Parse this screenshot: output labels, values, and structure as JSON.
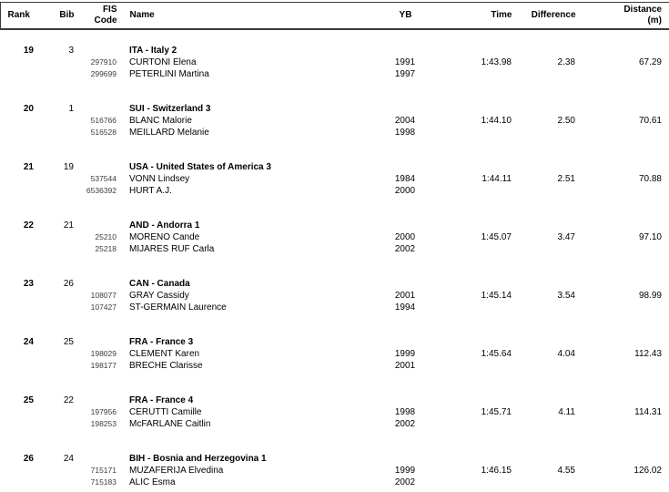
{
  "colors": {
    "border": "#3a3a3a",
    "text": "#000000",
    "fis_code_text": "#3c3c3c",
    "background": "#ffffff"
  },
  "header": {
    "rank": "Rank",
    "bib": "Bib",
    "fis_line1": "FIS",
    "fis_line2": "Code",
    "name": "Name",
    "yb": "YB",
    "time": "Time",
    "difference": "Difference",
    "distance_line1": "Distance",
    "distance_line2": "(m)"
  },
  "groups": [
    {
      "rank": "19",
      "bib": "3",
      "team": "ITA - Italy 2",
      "athletes": [
        {
          "fis_code": "297910",
          "name": "CURTONI Elena",
          "yb": "1991"
        },
        {
          "fis_code": "299699",
          "name": "PETERLINI Martina",
          "yb": "1997"
        }
      ],
      "time": "1:43.98",
      "difference": "2.38",
      "distance": "67.29"
    },
    {
      "rank": "20",
      "bib": "1",
      "team": "SUI - Switzerland 3",
      "athletes": [
        {
          "fis_code": "516766",
          "name": "BLANC Malorie",
          "yb": "2004"
        },
        {
          "fis_code": "516528",
          "name": "MEILLARD Melanie",
          "yb": "1998"
        }
      ],
      "time": "1:44.10",
      "difference": "2.50",
      "distance": "70.61"
    },
    {
      "rank": "21",
      "bib": "19",
      "team": "USA - United States of America 3",
      "athletes": [
        {
          "fis_code": "537544",
          "name": "VONN Lindsey",
          "yb": "1984"
        },
        {
          "fis_code": "6536392",
          "name": "HURT A.J.",
          "yb": "2000"
        }
      ],
      "time": "1:44.11",
      "difference": "2.51",
      "distance": "70.88"
    },
    {
      "rank": "22",
      "bib": "21",
      "team": "AND - Andorra 1",
      "athletes": [
        {
          "fis_code": "25210",
          "name": "MORENO Cande",
          "yb": "2000"
        },
        {
          "fis_code": "25218",
          "name": "MIJARES RUF Carla",
          "yb": "2002"
        }
      ],
      "time": "1:45.07",
      "difference": "3.47",
      "distance": "97.10"
    },
    {
      "rank": "23",
      "bib": "26",
      "team": "CAN - Canada",
      "athletes": [
        {
          "fis_code": "108077",
          "name": "GRAY Cassidy",
          "yb": "2001"
        },
        {
          "fis_code": "107427",
          "name": "ST-GERMAIN Laurence",
          "yb": "1994"
        }
      ],
      "time": "1:45.14",
      "difference": "3.54",
      "distance": "98.99"
    },
    {
      "rank": "24",
      "bib": "25",
      "team": "FRA - France 3",
      "athletes": [
        {
          "fis_code": "198029",
          "name": "CLEMENT Karen",
          "yb": "1999"
        },
        {
          "fis_code": "198177",
          "name": "BRECHE Clarisse",
          "yb": "2001"
        }
      ],
      "time": "1:45.64",
      "difference": "4.04",
      "distance": "112.43"
    },
    {
      "rank": "25",
      "bib": "22",
      "team": "FRA - France 4",
      "athletes": [
        {
          "fis_code": "197956",
          "name": "CERUTTI Camille",
          "yb": "1998"
        },
        {
          "fis_code": "198253",
          "name": "McFARLANE Caitlin",
          "yb": "2002"
        }
      ],
      "time": "1:45.71",
      "difference": "4.11",
      "distance": "114.31"
    },
    {
      "rank": "26",
      "bib": "24",
      "team": "BIH - Bosnia and Herzegovina 1",
      "athletes": [
        {
          "fis_code": "715171",
          "name": "MUZAFERIJA Elvedina",
          "yb": "1999"
        },
        {
          "fis_code": "715183",
          "name": "ALIC Esma",
          "yb": "2002"
        }
      ],
      "time": "1:46.15",
      "difference": "4.55",
      "distance": "126.02"
    }
  ]
}
